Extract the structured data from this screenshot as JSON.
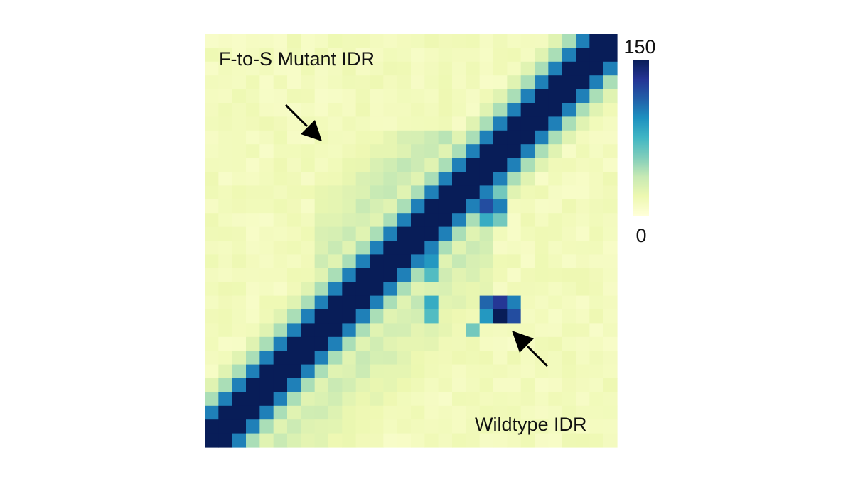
{
  "chart_data": {
    "type": "heatmap",
    "grid_size": 30,
    "colorscale": [
      "#ffffd9",
      "#edf8b1",
      "#c7e9b4",
      "#7fcdbb",
      "#41b6c4",
      "#1d91c0",
      "#225ea8",
      "#253494",
      "#081d58"
    ],
    "colorbar": {
      "min": 0,
      "max": 150,
      "min_label": "0",
      "max_label": "150"
    },
    "upper_triangle_label": "F-to-S Mutant IDR",
    "lower_triangle_label": "Wildtype IDR",
    "diagonal_value": 150,
    "background_value": 8,
    "features": [
      {
        "triangle": "upper",
        "description": "diffuse contact band",
        "row_range": [
          7,
          27
        ],
        "col_range": [
          8,
          24
        ],
        "value": 40
      },
      {
        "triangle": "lower",
        "description": "band near diagonal",
        "row_range": [
          10,
          29
        ],
        "col_range": [
          0,
          20
        ],
        "value": 35
      },
      {
        "triangle": "lower",
        "description": "strong off-diagonal contact",
        "cells": [
          [
            19,
            20,
            110
          ],
          [
            19,
            21,
            130
          ],
          [
            20,
            21,
            150
          ],
          [
            20,
            22,
            120
          ],
          [
            19,
            22,
            100
          ],
          [
            20,
            20,
            90
          ],
          [
            21,
            19,
            60
          ],
          [
            19,
            16,
            80
          ],
          [
            20,
            16,
            70
          ]
        ]
      },
      {
        "triangle": "lower",
        "description": "contact patch",
        "cells": [
          [
            12,
            20,
            120
          ],
          [
            12,
            21,
            100
          ],
          [
            13,
            20,
            80
          ],
          [
            13,
            21,
            60
          ],
          [
            11,
            20,
            70
          ],
          [
            11,
            21,
            60
          ],
          [
            16,
            16,
            90
          ],
          [
            17,
            16,
            70
          ],
          [
            15,
            16,
            60
          ]
        ]
      }
    ],
    "annotations": [
      {
        "type": "arrow",
        "points_to": "upper triangle contacts",
        "direction": "down-right"
      },
      {
        "type": "arrow",
        "points_to": "lower triangle contacts",
        "direction": "up-left"
      }
    ]
  }
}
